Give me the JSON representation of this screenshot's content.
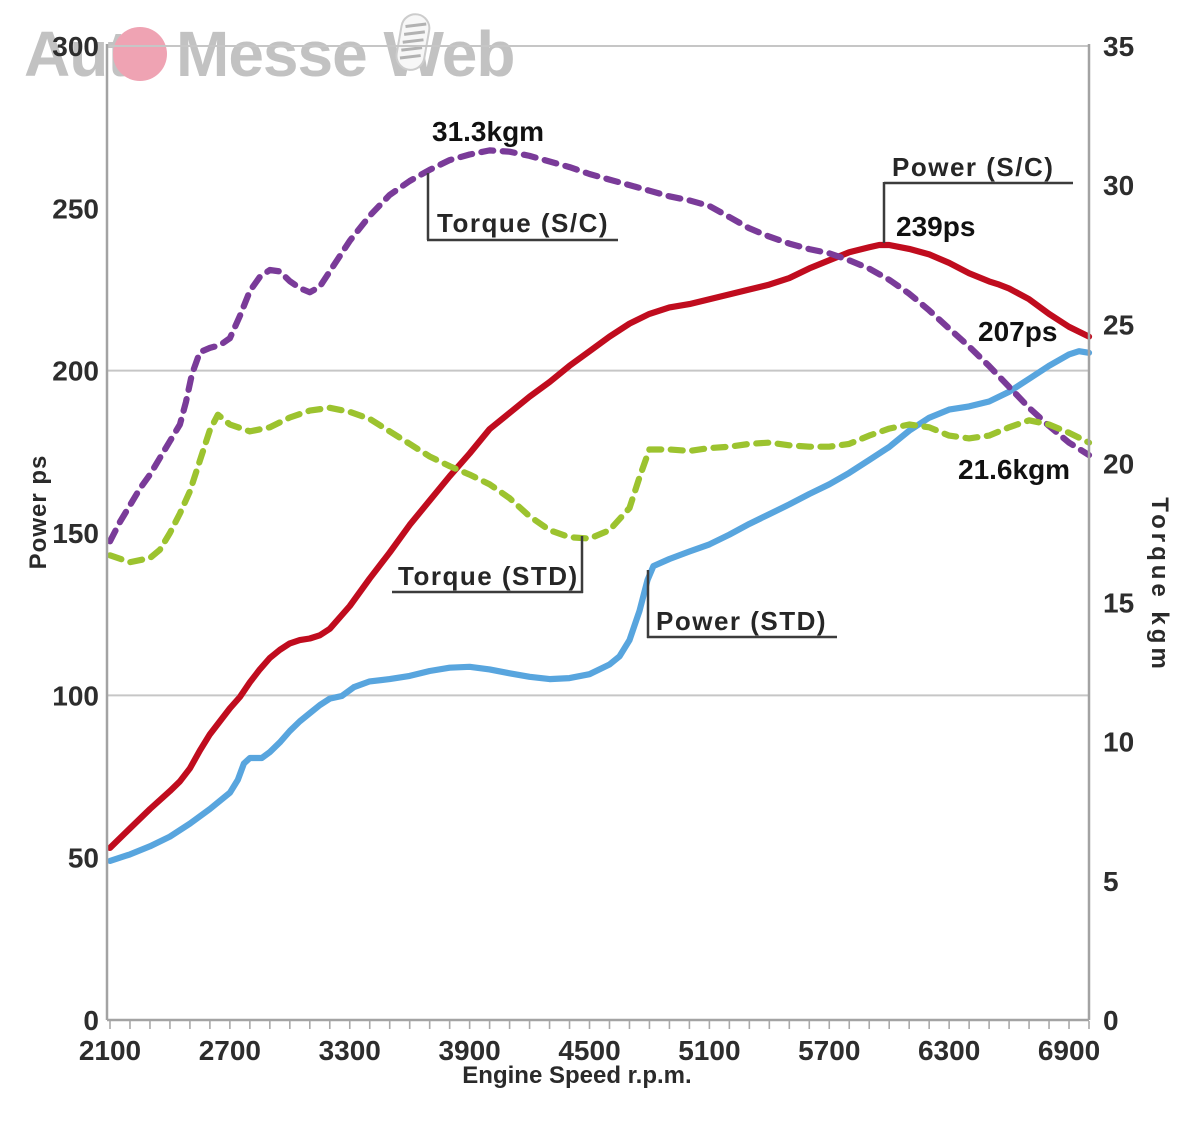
{
  "watermark": {
    "text_before_circle": "Aut",
    "text_after_circle": "Messe Web",
    "circle_color": "#efa3b3",
    "text_color": "#c2c2c2"
  },
  "axes": {
    "x": {
      "title": "Engine Speed r.p.m.",
      "tick_labels": [
        2100,
        2700,
        3300,
        3900,
        4500,
        5100,
        5700,
        6300,
        6900
      ],
      "minor_tick_step": 100,
      "range": [
        2100,
        7000
      ]
    },
    "y_left": {
      "title": "Power ps",
      "tick_labels": [
        0,
        50,
        100,
        150,
        200,
        250,
        300
      ],
      "gridlines_at": [
        100,
        200,
        300
      ],
      "range": [
        0,
        300
      ]
    },
    "y_right": {
      "title": "Torque kgm",
      "tick_labels": [
        0,
        5,
        10,
        15,
        20,
        25,
        30,
        35
      ],
      "range": [
        0,
        35
      ]
    }
  },
  "chart_data": {
    "type": "line",
    "x_unit": "rpm",
    "grid": "horizontal-only",
    "legend_position": "inline-annotations",
    "series": [
      {
        "name": "Power (S/C)",
        "id": "power-sc",
        "axis": "left",
        "unit": "ps",
        "color": "#c00c1e",
        "line_style": "solid",
        "peak_label": "239ps",
        "x": [
          2100,
          2200,
          2300,
          2400,
          2450,
          2500,
          2550,
          2600,
          2650,
          2700,
          2750,
          2800,
          2850,
          2900,
          2950,
          3000,
          3050,
          3100,
          3150,
          3200,
          3300,
          3400,
          3500,
          3600,
          3700,
          3800,
          3900,
          4000,
          4100,
          4200,
          4300,
          4400,
          4500,
          4600,
          4700,
          4800,
          4900,
          5000,
          5100,
          5200,
          5300,
          5400,
          5500,
          5600,
          5700,
          5800,
          5900,
          5950,
          6000,
          6100,
          6200,
          6300,
          6400,
          6500,
          6550,
          6600,
          6700,
          6800,
          6900,
          7000
        ],
        "y": [
          53,
          59,
          65,
          70.5,
          73.5,
          77.5,
          83,
          88,
          92,
          96,
          99.5,
          104,
          108,
          111.5,
          114,
          116,
          117,
          117.5,
          118.5,
          120.5,
          127.5,
          136,
          144,
          152.5,
          160,
          167.5,
          174.5,
          182,
          187,
          192,
          196.5,
          201.5,
          206,
          210.5,
          214.5,
          217.5,
          219.5,
          220.5,
          222,
          223.5,
          225,
          226.5,
          228.5,
          231.5,
          234,
          236.5,
          238,
          238.7,
          238.7,
          237.5,
          235.8,
          233.2,
          230,
          227.5,
          226.5,
          225.3,
          222,
          217.5,
          213.5,
          210.5
        ]
      },
      {
        "name": "Power (STD)",
        "id": "power-std",
        "axis": "left",
        "unit": "ps",
        "color": "#58a5de",
        "line_style": "solid",
        "peak_label": "207ps",
        "x": [
          2100,
          2200,
          2300,
          2400,
          2500,
          2600,
          2700,
          2740,
          2770,
          2800,
          2860,
          2900,
          2950,
          3000,
          3050,
          3100,
          3150,
          3200,
          3260,
          3320,
          3400,
          3500,
          3600,
          3700,
          3800,
          3900,
          4000,
          4100,
          4200,
          4300,
          4400,
          4500,
          4600,
          4650,
          4700,
          4750,
          4790,
          4820,
          4900,
          5000,
          5100,
          5200,
          5300,
          5400,
          5500,
          5600,
          5700,
          5800,
          5900,
          6000,
          6100,
          6200,
          6300,
          6400,
          6500,
          6600,
          6700,
          6800,
          6900,
          6950,
          7000
        ],
        "y": [
          49,
          51,
          53.5,
          56.5,
          60.5,
          65,
          70,
          74,
          79,
          80.7,
          80.7,
          82.5,
          85.5,
          89,
          92,
          94.5,
          97,
          99,
          99.8,
          102.5,
          104.3,
          105,
          106,
          107.5,
          108.5,
          108.8,
          108,
          106.8,
          105.7,
          105,
          105.3,
          106.5,
          109.5,
          112,
          117,
          126,
          135.5,
          139.8,
          142,
          144.3,
          146.5,
          149.5,
          152.8,
          155.8,
          158.8,
          162,
          165,
          168.5,
          172.5,
          176.5,
          181.5,
          185.5,
          188,
          189,
          190.5,
          193.5,
          197.5,
          201.5,
          205,
          206,
          205.5
        ]
      },
      {
        "name": "Torque (S/C)",
        "id": "torque-sc",
        "axis": "right",
        "unit": "kgm",
        "color": "#7a3b99",
        "line_style": "dashed",
        "peak_label": "31.3kgm",
        "x": [
          2100,
          2150,
          2200,
          2250,
          2300,
          2350,
          2400,
          2450,
          2480,
          2510,
          2550,
          2600,
          2650,
          2700,
          2750,
          2800,
          2850,
          2900,
          2950,
          3000,
          3050,
          3100,
          3150,
          3200,
          3300,
          3400,
          3500,
          3600,
          3700,
          3800,
          3900,
          4000,
          4100,
          4200,
          4300,
          4400,
          4500,
          4600,
          4700,
          4800,
          4900,
          5000,
          5100,
          5200,
          5300,
          5400,
          5500,
          5600,
          5700,
          5800,
          5900,
          6000,
          6100,
          6200,
          6300,
          6400,
          6500,
          6600,
          6700,
          6800,
          6900,
          7000
        ],
        "y": [
          17.2,
          17.9,
          18.5,
          19.1,
          19.6,
          20.2,
          20.8,
          21.4,
          22.2,
          23.2,
          24.0,
          24.15,
          24.25,
          24.5,
          25.3,
          26.2,
          26.7,
          26.95,
          26.9,
          26.55,
          26.3,
          26.15,
          26.35,
          26.9,
          28.0,
          28.9,
          29.65,
          30.15,
          30.55,
          30.9,
          31.1,
          31.25,
          31.2,
          31.05,
          30.85,
          30.65,
          30.4,
          30.2,
          30.0,
          29.8,
          29.6,
          29.45,
          29.25,
          28.85,
          28.45,
          28.15,
          27.9,
          27.7,
          27.55,
          27.3,
          27.0,
          26.6,
          26.1,
          25.5,
          24.85,
          24.2,
          23.5,
          22.75,
          22.0,
          21.35,
          20.75,
          20.3
        ]
      },
      {
        "name": "Torque (STD)",
        "id": "torque-std",
        "axis": "right",
        "unit": "kgm",
        "color": "#9cc32f",
        "line_style": "dashed",
        "end_label": "21.6kgm",
        "x": [
          2100,
          2200,
          2300,
          2350,
          2400,
          2450,
          2500,
          2550,
          2600,
          2640,
          2700,
          2800,
          2900,
          3000,
          3100,
          3200,
          3300,
          3400,
          3500,
          3600,
          3700,
          3800,
          3900,
          4000,
          4100,
          4200,
          4300,
          4400,
          4500,
          4600,
          4700,
          4750,
          4800,
          4900,
          5000,
          5100,
          5200,
          5300,
          5400,
          5500,
          5600,
          5700,
          5800,
          5900,
          6000,
          6100,
          6200,
          6300,
          6400,
          6500,
          6600,
          6700,
          6800,
          6900,
          7000
        ],
        "y": [
          16.7,
          16.45,
          16.6,
          16.9,
          17.5,
          18.2,
          19.0,
          20.1,
          21.2,
          21.75,
          21.4,
          21.15,
          21.3,
          21.65,
          21.9,
          22.0,
          21.85,
          21.6,
          21.15,
          20.7,
          20.25,
          19.9,
          19.6,
          19.25,
          18.75,
          18.1,
          17.6,
          17.35,
          17.3,
          17.6,
          18.4,
          19.5,
          20.5,
          20.5,
          20.45,
          20.55,
          20.6,
          20.7,
          20.75,
          20.65,
          20.6,
          20.6,
          20.7,
          21.0,
          21.25,
          21.4,
          21.3,
          21.0,
          20.9,
          21.0,
          21.3,
          21.55,
          21.4,
          21.1,
          20.75
        ]
      }
    ],
    "annotations": [
      {
        "id": "torque-sc-peak-value",
        "text": "31.3kgm"
      },
      {
        "id": "torque-sc-curve-label",
        "text": "Torque (S/C)"
      },
      {
        "id": "power-sc-curve-label",
        "text": "Power (S/C)"
      },
      {
        "id": "power-sc-peak-value",
        "text": "239ps"
      },
      {
        "id": "power-std-max-value",
        "text": "207ps"
      },
      {
        "id": "torque-std-end-value",
        "text": "21.6kgm"
      },
      {
        "id": "torque-std-curve-label",
        "text": "Torque (STD)"
      },
      {
        "id": "power-std-curve-label",
        "text": "Power (STD)"
      }
    ]
  }
}
